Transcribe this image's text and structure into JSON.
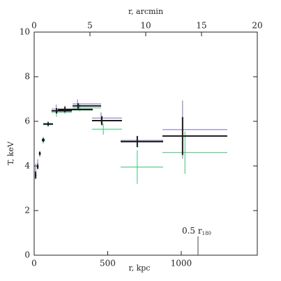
{
  "chart_data": {
    "type": "errorbar",
    "xlabel": "r, kpc",
    "x2label": "r, arcmin",
    "ylabel": "T, keV",
    "xlim": [
      0,
      1517
    ],
    "xticks": [
      0,
      500,
      1000
    ],
    "x2lim": [
      0,
      20
    ],
    "x2ticks": [
      0,
      5,
      10,
      15,
      20
    ],
    "ylim": [
      0,
      10
    ],
    "yticks": [
      0,
      2,
      4,
      6,
      8,
      10
    ],
    "annotation": {
      "text": "0.5 r",
      "subscript": "180",
      "x": 1114
    },
    "series": [
      {
        "name": "purple",
        "color": "#7b6bb8",
        "x": [
          10,
          24,
          38,
          62,
          95,
          150,
          209,
          295,
          455,
          701,
          1009
        ],
        "x_low": [
          5,
          18,
          32,
          52,
          62,
          118,
          161,
          261,
          393,
          588,
          872
        ],
        "x_high": [
          15,
          30,
          45,
          72,
          128,
          256,
          398,
          455,
          597,
          877,
          1313
        ],
        "values": [
          3.75,
          4.1,
          4.55,
          5.2,
          5.9,
          6.55,
          6.55,
          6.78,
          6.15,
          5.15,
          5.63
        ],
        "yerr": [
          0.35,
          0.2,
          0.1,
          0.1,
          0.1,
          0.2,
          0.15,
          0.2,
          0.25,
          0.2,
          1.3
        ]
      },
      {
        "name": "green",
        "color": "#3cbf7a",
        "x": [
          10,
          24,
          38,
          62,
          95,
          152,
          209,
          310,
          470,
          701,
          1025
        ],
        "x_low": [
          5,
          18,
          32,
          52,
          62,
          118,
          161,
          261,
          393,
          588,
          872
        ],
        "x_high": [
          15,
          30,
          45,
          72,
          128,
          256,
          398,
          455,
          597,
          877,
          1313
        ],
        "values": [
          3.55,
          3.95,
          4.5,
          5.1,
          5.85,
          6.4,
          6.5,
          6.6,
          5.65,
          3.95,
          4.6
        ],
        "yerr": [
          0.1,
          0.1,
          0.1,
          0.1,
          0.1,
          0.2,
          0.15,
          0.15,
          0.25,
          0.75,
          0.95
        ]
      },
      {
        "name": "black",
        "color": "#1a1a1a",
        "x": [
          10,
          24,
          38,
          62,
          95,
          152,
          209,
          299,
          460,
          701,
          1009
        ],
        "x_low": [
          5,
          18,
          32,
          52,
          62,
          118,
          161,
          261,
          393,
          588,
          872
        ],
        "x_high": [
          15,
          30,
          45,
          72,
          128,
          256,
          398,
          455,
          597,
          877,
          1313
        ],
        "values": [
          3.59,
          3.97,
          4.56,
          5.16,
          5.88,
          6.47,
          6.53,
          6.69,
          6.03,
          5.09,
          5.34
        ],
        "yerr": [
          0.15,
          0.1,
          0.08,
          0.08,
          0.08,
          0.12,
          0.12,
          0.12,
          0.2,
          0.25,
          0.85
        ]
      }
    ]
  }
}
